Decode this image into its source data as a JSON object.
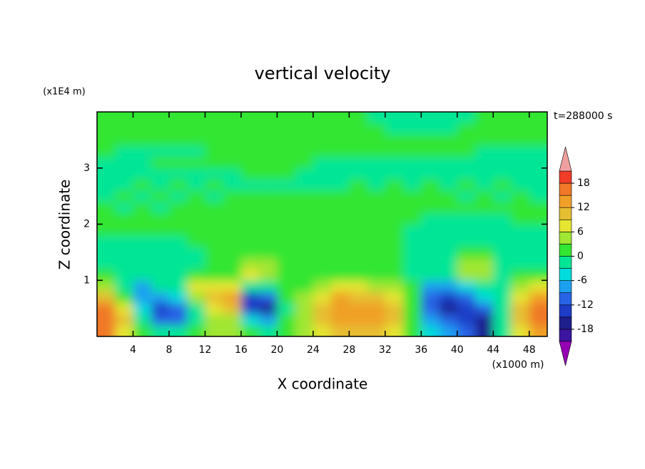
{
  "chart_data": {
    "type": "contour",
    "title": "vertical velocity",
    "xlabel": "X coordinate",
    "ylabel": "Z coordinate",
    "x_unit": "(x1000 m)",
    "y_unit": "(x1E4 m)",
    "time_label": "t=288000 s",
    "xlim": [
      0,
      50
    ],
    "ylim": [
      0,
      4
    ],
    "xticks": [
      4,
      8,
      12,
      16,
      20,
      24,
      28,
      32,
      36,
      40,
      44,
      48
    ],
    "yticks": [
      1,
      2,
      3
    ],
    "x": [
      1,
      3,
      5,
      7,
      9,
      11,
      13,
      15,
      17,
      19,
      21,
      23,
      25,
      27,
      29,
      31,
      33,
      35,
      37,
      39,
      41,
      43,
      45,
      47,
      49
    ],
    "y": [
      0.1,
      0.3,
      0.5,
      0.7,
      0.9,
      1.1,
      1.3,
      1.5,
      1.7,
      1.9,
      2.1,
      2.3,
      2.5,
      2.7,
      2.9,
      3.1,
      3.3,
      3.5,
      3.7,
      3.9
    ],
    "values": [
      [
        15,
        6,
        1,
        -3,
        -3,
        1,
        3,
        3,
        0,
        -2,
        1,
        3,
        6,
        9,
        9,
        9,
        6,
        1,
        -6,
        -9,
        -12,
        -18,
        -3,
        6,
        12
      ],
      [
        17,
        9,
        -3,
        -12,
        -12,
        -3,
        3,
        4,
        -6,
        -9,
        0,
        4,
        9,
        12,
        13,
        12,
        9,
        2,
        -9,
        -12,
        -14,
        -16,
        -3,
        9,
        15
      ],
      [
        15,
        6,
        -6,
        -15,
        -12,
        -3,
        6,
        9,
        -15,
        -16,
        -1,
        4,
        9,
        14,
        12,
        13,
        9,
        2,
        -12,
        -16,
        -14,
        -12,
        -3,
        9,
        17
      ],
      [
        9,
        2,
        -9,
        -9,
        -6,
        3,
        9,
        12,
        -14,
        -12,
        0,
        4,
        8,
        12,
        10,
        9,
        6,
        1,
        -12,
        -15,
        -12,
        -6,
        -3,
        6,
        12
      ],
      [
        3,
        -1,
        -9,
        -3,
        -3,
        6,
        6,
        6,
        -3,
        -3,
        0,
        2,
        4,
        6,
        6,
        4,
        3,
        0,
        -9,
        -9,
        -6,
        -3,
        -2,
        3,
        6
      ],
      [
        1,
        -1,
        -3,
        -1,
        -2,
        1,
        2,
        2,
        6,
        4,
        0,
        1,
        1,
        2,
        2,
        1,
        0,
        -1,
        -3,
        -3,
        3,
        4,
        -1,
        0,
        1
      ],
      [
        -1,
        -2,
        -2,
        -2,
        -2,
        -1,
        0,
        2,
        4,
        3,
        1,
        1,
        1,
        1,
        1,
        1,
        0,
        -1,
        -2,
        -1,
        5,
        3,
        -1,
        -1,
        -2
      ],
      [
        -2,
        -2,
        -1,
        -1,
        -1,
        -1,
        0,
        1,
        2,
        1,
        1,
        1,
        1,
        1,
        1,
        0,
        0,
        -1,
        -1,
        -1,
        1,
        1,
        -1,
        -2,
        -2
      ],
      [
        -1,
        -1,
        -1,
        -1,
        -1,
        0,
        0,
        1,
        1,
        1,
        1,
        1,
        1,
        1,
        1,
        1,
        0,
        -1,
        -1,
        -1,
        -1,
        -1,
        -1,
        -1,
        -1
      ],
      [
        1,
        1,
        1,
        1,
        1,
        1,
        1,
        1,
        1,
        1,
        1,
        1,
        1,
        1,
        1,
        1,
        0,
        -1,
        -1,
        -1,
        -1,
        -1,
        -1,
        -1,
        -1
      ],
      [
        1,
        1,
        1,
        1,
        1,
        1,
        1,
        1,
        1,
        1,
        1,
        1,
        1,
        1,
        1,
        1,
        1,
        0,
        -1,
        -1,
        -1,
        -1,
        -1,
        0,
        1
      ],
      [
        1,
        -1,
        1,
        -1,
        1,
        1,
        1,
        1,
        1,
        1,
        1,
        1,
        1,
        1,
        1,
        1,
        1,
        1,
        1,
        1,
        1,
        1,
        1,
        1,
        1
      ],
      [
        -1,
        1,
        -1,
        1,
        -1,
        1,
        -1,
        1,
        1,
        1,
        1,
        1,
        1,
        1,
        1,
        1,
        1,
        1,
        1,
        1,
        -1,
        1,
        -1,
        1,
        -1
      ],
      [
        -1,
        -1,
        1,
        -1,
        1,
        -1,
        1,
        -1,
        -1,
        -1,
        -1,
        -1,
        -1,
        -1,
        1,
        -1,
        1,
        -1,
        1,
        -1,
        1,
        -1,
        1,
        -1,
        -1
      ],
      [
        -1,
        -1,
        -1,
        -1,
        -1,
        -1,
        -1,
        -1,
        1,
        1,
        1,
        -1,
        -1,
        -1,
        -1,
        -1,
        -1,
        -1,
        -1,
        -1,
        -1,
        -1,
        -1,
        -1,
        -1
      ],
      [
        -1,
        -1,
        -1,
        1,
        1,
        1,
        1,
        1,
        1,
        1,
        1,
        1,
        -1,
        -1,
        -1,
        -1,
        -1,
        -1,
        -1,
        -1,
        -1,
        -1,
        -1,
        -1,
        -1
      ],
      [
        1,
        -1,
        -1,
        -1,
        -1,
        -1,
        1,
        1,
        1,
        1,
        1,
        1,
        1,
        1,
        1,
        1,
        1,
        1,
        1,
        1,
        1,
        -1,
        -1,
        -1,
        -1
      ],
      [
        1,
        1,
        1,
        1,
        1,
        1,
        1,
        1,
        1,
        1,
        1,
        1,
        1,
        1,
        1,
        1,
        1,
        1,
        1,
        1,
        1,
        1,
        1,
        1,
        1
      ],
      [
        1,
        1,
        1,
        1,
        1,
        1,
        1,
        1,
        1,
        1,
        1,
        1,
        1,
        1,
        1,
        1,
        -1,
        -1,
        -1,
        -1,
        1,
        1,
        1,
        1,
        1
      ],
      [
        1,
        1,
        1,
        1,
        1,
        1,
        1,
        1,
        1,
        1,
        1,
        1,
        1,
        1,
        1,
        -1,
        -1,
        -1,
        -1,
        -1,
        -1,
        1,
        1,
        1,
        1
      ]
    ],
    "levels": [
      -21,
      -18,
      -15,
      -12,
      -9,
      -6,
      -3,
      0,
      3,
      6,
      9,
      12,
      15,
      18,
      21
    ],
    "colors": [
      "#9600b4",
      "#3c14a0",
      "#1e1e8c",
      "#1e3cc8",
      "#2864e6",
      "#1ea0f0",
      "#00dcdc",
      "#00e696",
      "#32e632",
      "#a0e632",
      "#e6e632",
      "#e6be32",
      "#f0a028",
      "#f07828",
      "#f03c28",
      "#f0a0a0"
    ],
    "colorbar_ticks": [
      -18,
      -12,
      -6,
      0,
      6,
      12,
      18
    ]
  }
}
